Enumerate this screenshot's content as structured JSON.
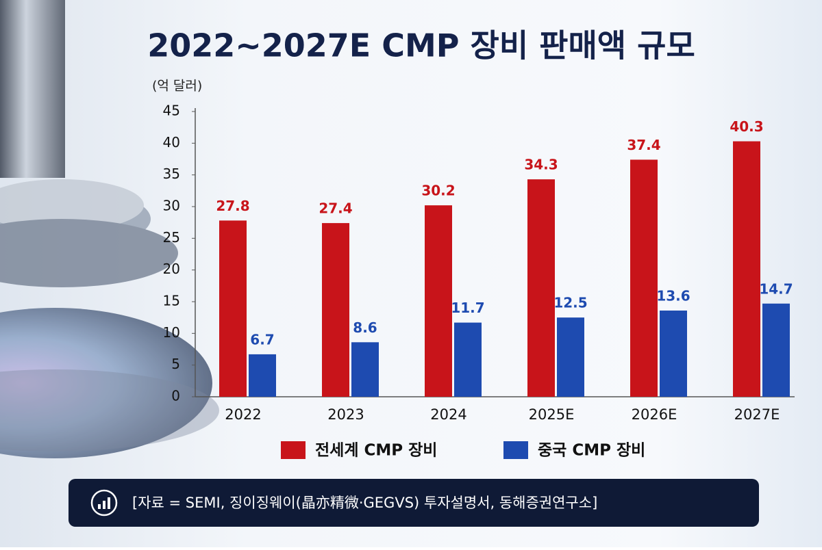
{
  "chart_data": {
    "type": "bar",
    "title": "2022~2027E CMP 장비 판매액 규모",
    "y_label": "(억 달러)",
    "categories": [
      "2022",
      "2023",
      "2024",
      "2025E",
      "2026E",
      "2027E"
    ],
    "series": [
      {
        "name": "전세계 CMP 장비",
        "color": "#c8141a",
        "values": [
          27.8,
          27.4,
          30.2,
          34.3,
          37.4,
          40.3
        ]
      },
      {
        "name": "중국 CMP 장비",
        "color": "#1e4bb0",
        "values": [
          6.7,
          8.6,
          11.7,
          12.5,
          13.6,
          14.7
        ]
      }
    ],
    "ylim": [
      0,
      45
    ],
    "yticks": [
      0,
      5,
      10,
      15,
      20,
      25,
      30,
      35,
      40,
      45
    ],
    "grid": false,
    "source": "[자료 = SEMI,   징이징웨이(晶亦精微·GEGVS) 투자설명서, 동해증권연구소]"
  }
}
